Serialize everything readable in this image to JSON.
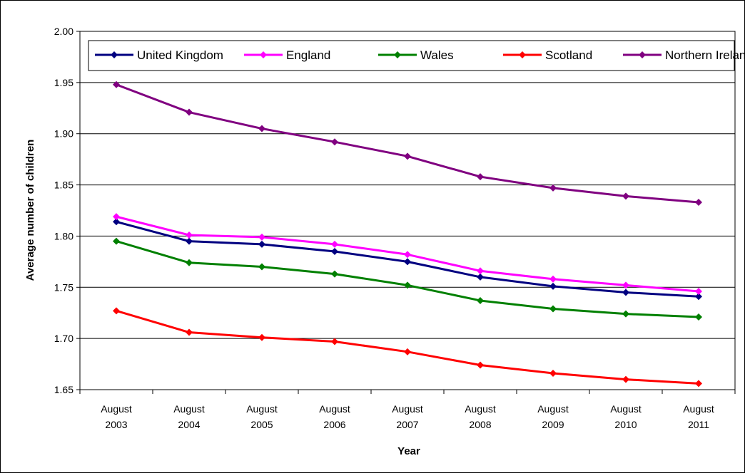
{
  "chart_data": {
    "type": "line",
    "title": "",
    "xlabel": "Year",
    "ylabel": "Average number of children",
    "categories": [
      [
        "August",
        "2003"
      ],
      [
        "August",
        "2004"
      ],
      [
        "August",
        "2005"
      ],
      [
        "August",
        "2006"
      ],
      [
        "August",
        "2007"
      ],
      [
        "August",
        "2008"
      ],
      [
        "August",
        "2009"
      ],
      [
        "August",
        "2010"
      ],
      [
        "August",
        "2011"
      ]
    ],
    "ylim": [
      1.65,
      2.0
    ],
    "yticks": [
      "1.65",
      "1.70",
      "1.75",
      "1.80",
      "1.85",
      "1.90",
      "1.95",
      "2.00"
    ],
    "grid": true,
    "legend_position": "top",
    "series": [
      {
        "name": "United Kingdom",
        "color": "#000080",
        "values": [
          1.814,
          1.795,
          1.792,
          1.785,
          1.775,
          1.76,
          1.751,
          1.745,
          1.741
        ]
      },
      {
        "name": "England",
        "color": "#ff00ff",
        "values": [
          1.819,
          1.801,
          1.799,
          1.792,
          1.782,
          1.766,
          1.758,
          1.752,
          1.746
        ]
      },
      {
        "name": "Wales",
        "color": "#008000",
        "values": [
          1.795,
          1.774,
          1.77,
          1.763,
          1.752,
          1.737,
          1.729,
          1.724,
          1.721
        ]
      },
      {
        "name": "Scotland",
        "color": "#ff0000",
        "values": [
          1.727,
          1.706,
          1.701,
          1.697,
          1.687,
          1.674,
          1.666,
          1.66,
          1.656
        ]
      },
      {
        "name": "Northern Ireland",
        "color": "#800080",
        "values": [
          1.948,
          1.921,
          1.905,
          1.892,
          1.878,
          1.858,
          1.847,
          1.839,
          1.833
        ]
      }
    ]
  }
}
